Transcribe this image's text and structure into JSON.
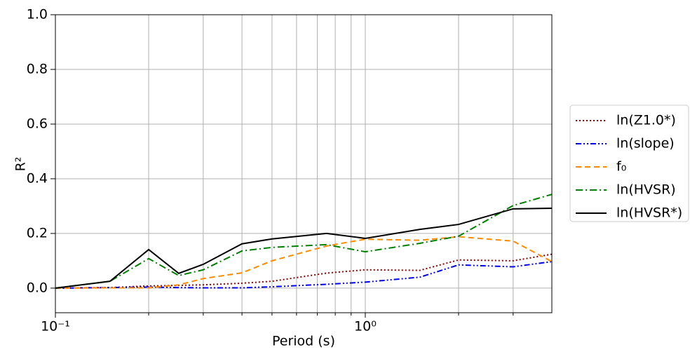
{
  "chart_data": {
    "type": "line",
    "xlabel": "Period (s)",
    "ylabel": "R²",
    "x": [
      0.1,
      0.15,
      0.2,
      0.25,
      0.3,
      0.4,
      0.5,
      0.75,
      1.0,
      1.5,
      2.0,
      3.0,
      4.0
    ],
    "xlog": true,
    "xlim": [
      0.1,
      4
    ],
    "ylim": [
      -0.09,
      1.0
    ],
    "xticks": [
      {
        "value": 0.1,
        "label": "10⁻¹"
      },
      {
        "value": 1,
        "label": "10⁰"
      }
    ],
    "xminorticks": [
      0.2,
      0.3,
      0.4,
      0.5,
      0.6,
      0.7,
      0.8,
      0.9,
      2,
      3
    ],
    "yticks": [
      {
        "value": 0,
        "label": "0.0"
      },
      {
        "value": 0.2,
        "label": "0.2"
      },
      {
        "value": 0.4,
        "label": "0.4"
      },
      {
        "value": 0.6,
        "label": "0.6"
      },
      {
        "value": 0.8,
        "label": "0.8"
      },
      {
        "value": 1,
        "label": "1.0"
      }
    ],
    "grid": true,
    "legend": "outside right",
    "series": [
      {
        "name": "ln(Z1.0*)",
        "color": "#8b0000",
        "linestyle": "dotted",
        "values": [
          0,
          0.002,
          0.008,
          0.01,
          0.012,
          0.018,
          0.025,
          0.055,
          0.067,
          0.065,
          0.103,
          0.1,
          0.124
        ]
      },
      {
        "name": "ln(slope)",
        "color": "#0000ee",
        "linestyle": "dashdotdot",
        "values": [
          0,
          0.002,
          0.004,
          0.002,
          0.001,
          0.001,
          0.005,
          0.014,
          0.022,
          0.04,
          0.085,
          0.078,
          0.097
        ]
      },
      {
        "name": "f₀",
        "color": "#ff8c00",
        "linestyle": "dashed",
        "values": [
          0,
          0.001,
          0.001,
          0.012,
          0.035,
          0.056,
          0.1,
          0.154,
          0.179,
          0.175,
          0.188,
          0.172,
          0.097
        ]
      },
      {
        "name": "ln(HVSR)",
        "color": "#008000",
        "linestyle": "dashdot",
        "values": [
          0,
          0.025,
          0.108,
          0.046,
          0.067,
          0.136,
          0.149,
          0.159,
          0.133,
          0.164,
          0.19,
          0.302,
          0.343
        ]
      },
      {
        "name": "ln(HVSR*)",
        "color": "#000000",
        "linestyle": "solid",
        "values": [
          0,
          0.025,
          0.141,
          0.054,
          0.087,
          0.162,
          0.18,
          0.2,
          0.182,
          0.215,
          0.233,
          0.29,
          0.292
        ]
      }
    ]
  }
}
